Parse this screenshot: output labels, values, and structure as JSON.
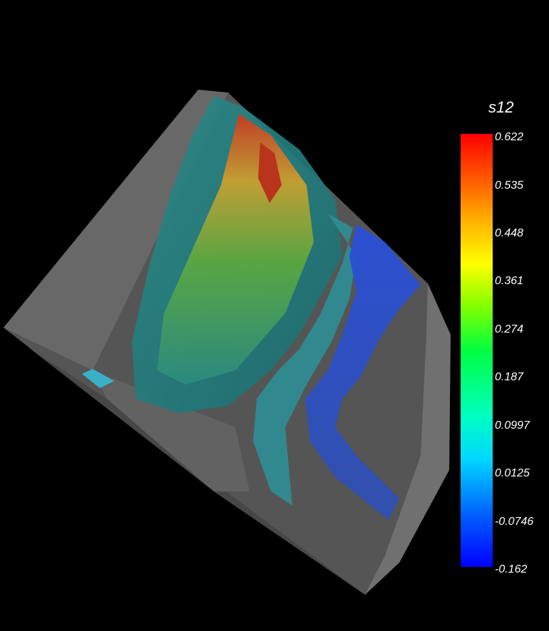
{
  "colorbar": {
    "title": "s12",
    "ticks": [
      "0.622",
      "0.535",
      "0.448",
      "0.361",
      "0.274",
      "0.187",
      "0.0997",
      "0.0125",
      "-0.0746",
      "-0.162"
    ],
    "max": 0.622,
    "min": -0.162
  },
  "colors": {
    "background": "#000000",
    "housing": "#5a5a5a",
    "colormap_high": "#ff0000",
    "colormap_low": "#0000ff"
  }
}
